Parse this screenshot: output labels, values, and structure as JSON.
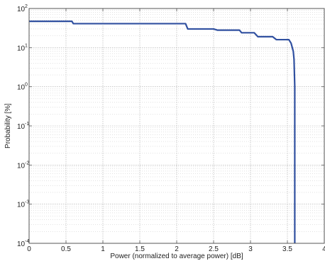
{
  "chart_data": {
    "type": "line",
    "title": "",
    "xlabel": "Power (normalized to average power) [dB]",
    "ylabel": "Probability [%]",
    "xlim": [
      0,
      4
    ],
    "ylim": [
      0.0001,
      100
    ],
    "y_scale": "log",
    "grid": true,
    "x_ticks": [
      "0",
      "0.5",
      "1",
      "1.5",
      "2",
      "2.5",
      "3",
      "3.5",
      "4"
    ],
    "y_ticks": [
      {
        "base": "10",
        "exp": "-4"
      },
      {
        "base": "10",
        "exp": "-3"
      },
      {
        "base": "10",
        "exp": "-2"
      },
      {
        "base": "10",
        "exp": "-1"
      },
      {
        "base": "10",
        "exp": "0"
      },
      {
        "base": "10",
        "exp": "1"
      },
      {
        "base": "10",
        "exp": "2"
      }
    ],
    "series": [
      {
        "color": "#3050a0",
        "x": [
          0,
          0.58,
          0.6,
          2.12,
          2.15,
          2.5,
          2.55,
          2.85,
          2.88,
          3.05,
          3.1,
          3.3,
          3.35,
          3.52,
          3.55,
          3.58,
          3.59,
          3.6,
          3.6,
          3.6,
          3.6
        ],
        "y": [
          47,
          47,
          41,
          41,
          30,
          30,
          28,
          28,
          24,
          24,
          19,
          19,
          16,
          16,
          13,
          8,
          5,
          1,
          0.1,
          0.01,
          0.0001
        ]
      }
    ]
  }
}
